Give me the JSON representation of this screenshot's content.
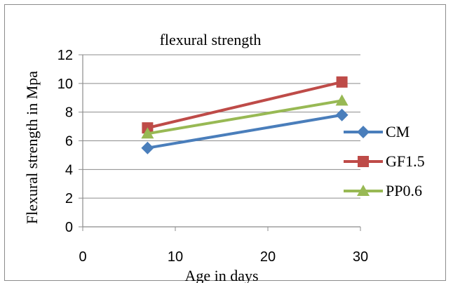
{
  "chart_data": {
    "type": "line",
    "title": "flexural strength",
    "xlabel": "Age in days",
    "ylabel": "Flexural strength in Mpa",
    "xlim": [
      0,
      30
    ],
    "ylim": [
      0,
      12
    ],
    "xticks": [
      0,
      10,
      20,
      30
    ],
    "yticks": [
      0,
      2,
      4,
      6,
      8,
      10,
      12
    ],
    "grid": "horizontal",
    "legend": "right",
    "series": [
      {
        "name": "CM",
        "color": "#4a7ebb",
        "marker": "diamond",
        "x": [
          7,
          28
        ],
        "y": [
          5.5,
          7.8
        ]
      },
      {
        "name": "GF1.5",
        "color": "#be4b48",
        "marker": "square",
        "x": [
          7,
          28
        ],
        "y": [
          6.9,
          10.1
        ]
      },
      {
        "name": "PP0.6",
        "color": "#98b954",
        "marker": "triangle",
        "x": [
          7,
          28
        ],
        "y": [
          6.5,
          8.8
        ]
      }
    ]
  }
}
